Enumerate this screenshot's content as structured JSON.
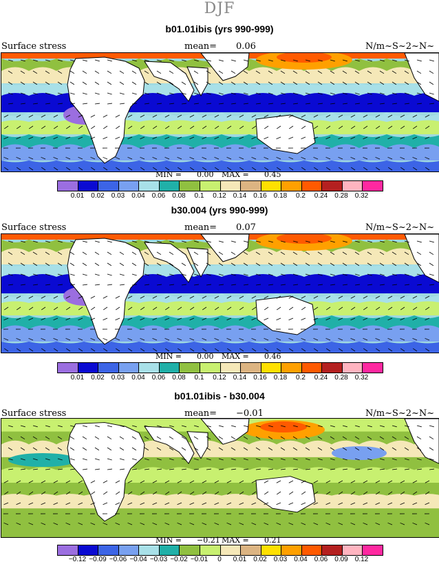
{
  "suptitle": "DJF",
  "colors": {
    "ocean_base": "#9fd9e0",
    "land": "#ffffff",
    "vector": "#000000"
  },
  "panels": [
    {
      "title": "b01.01ibis (yrs 990-999)",
      "left_label": "Surface stress",
      "mean_label": "mean=",
      "mean_value": "0.06",
      "units": "N/m~S~2~N~",
      "min_label": "MIN =",
      "min_value": "0.00",
      "max_label": "MAX =",
      "max_value": "0.45",
      "colorbar": {
        "colors": [
          "#9b6ee0",
          "#0a0ad2",
          "#3c64e6",
          "#78a0f0",
          "#a8e0e8",
          "#20b0a8",
          "#90c040",
          "#c8f070",
          "#f5e8b8",
          "#dcb482",
          "#ffe000",
          "#ffa000",
          "#ff5a00",
          "#b42020",
          "#ffb4c0",
          "#ff28a0"
        ],
        "labels": [
          "0.01",
          "0.02",
          "0.03",
          "0.04",
          "0.06",
          "0.08",
          "0.1",
          "0.12",
          "0.14",
          "0.16",
          "0.18",
          "0.2",
          "0.24",
          "0.28",
          "0.32"
        ]
      }
    },
    {
      "title": "b30.004 (yrs 990-999)",
      "left_label": "Surface stress",
      "mean_label": "mean=",
      "mean_value": "0.07",
      "units": "N/m~S~2~N~",
      "min_label": "MIN =",
      "min_value": "0.00",
      "max_label": "MAX =",
      "max_value": "0.46",
      "colorbar": {
        "colors": [
          "#9b6ee0",
          "#0a0ad2",
          "#3c64e6",
          "#78a0f0",
          "#a8e0e8",
          "#20b0a8",
          "#90c040",
          "#c8f070",
          "#f5e8b8",
          "#dcb482",
          "#ffe000",
          "#ffa000",
          "#ff5a00",
          "#b42020",
          "#ffb4c0",
          "#ff28a0"
        ],
        "labels": [
          "0.01",
          "0.02",
          "0.03",
          "0.04",
          "0.06",
          "0.08",
          "0.1",
          "0.12",
          "0.14",
          "0.16",
          "0.18",
          "0.2",
          "0.24",
          "0.28",
          "0.32"
        ]
      }
    },
    {
      "title": "b01.01ibis - b30.004",
      "left_label": "Surface stress",
      "mean_label": "mean=",
      "mean_value": "−0.01",
      "units": "N/m~S~2~N~",
      "min_label": "MIN =",
      "min_value": "−0.21",
      "max_label": "MAX =",
      "max_value": "0.21",
      "colorbar": {
        "colors": [
          "#9b6ee0",
          "#0a0ad2",
          "#3c64e6",
          "#78a0f0",
          "#a8e0e8",
          "#20b0a8",
          "#90c040",
          "#c8f070",
          "#f5e8b8",
          "#dcb482",
          "#ffe000",
          "#ffa000",
          "#ff5a00",
          "#b42020",
          "#ffb4c0",
          "#ff28a0"
        ],
        "labels": [
          "−0.12",
          "−0.09",
          "−0.06",
          "−0.04",
          "−0.03",
          "−0.02",
          "−0.01",
          "0",
          "0.01",
          "0.02",
          "0.03",
          "0.04",
          "0.06",
          "0.09",
          "0.12"
        ]
      }
    }
  ]
}
